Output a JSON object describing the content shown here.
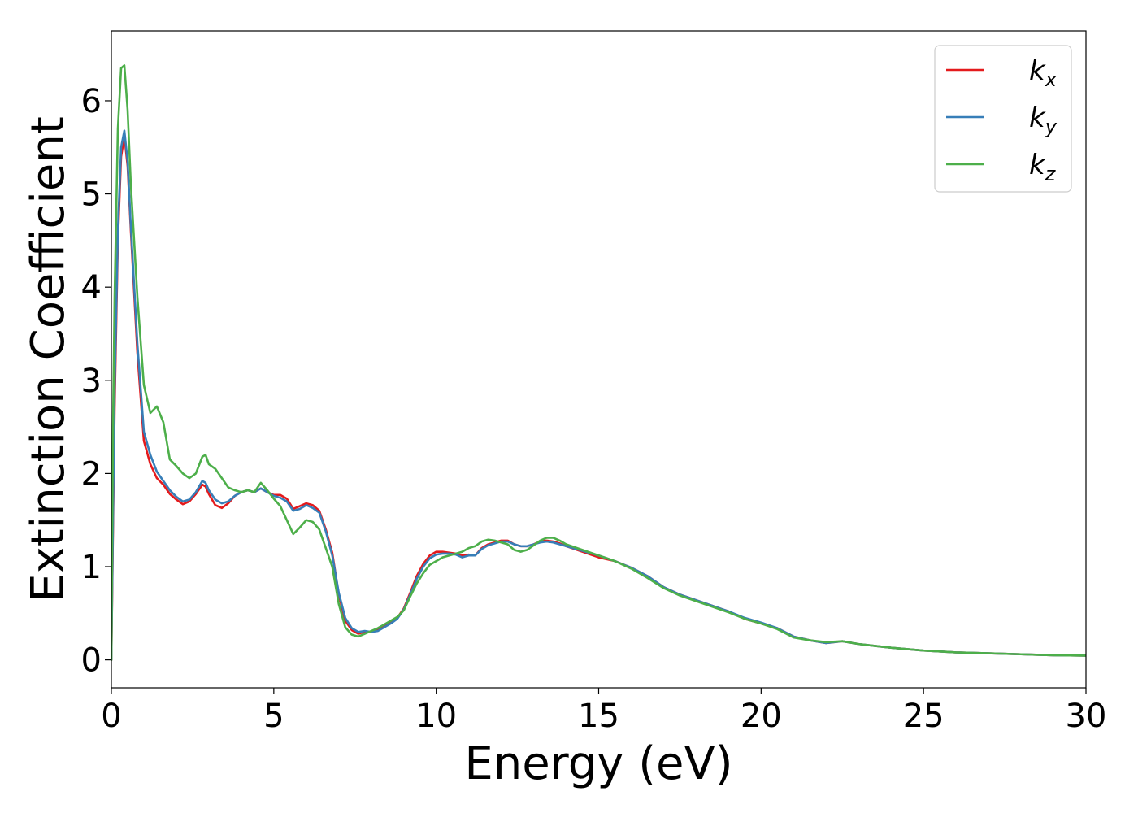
{
  "chart_data": {
    "type": "line",
    "title": "",
    "xlabel": "Energy (eV)",
    "ylabel": "Extinction Coefficient",
    "xlim": [
      0,
      30
    ],
    "ylim": [
      -0.3,
      6.75
    ],
    "xticks": [
      0,
      5,
      10,
      15,
      20,
      25,
      30
    ],
    "yticks": [
      0,
      1,
      2,
      3,
      4,
      5,
      6
    ],
    "grid": false,
    "legend_position": "top-right",
    "series": [
      {
        "name": "k_x",
        "label_base": "k",
        "label_sub": "x",
        "color": "#e41a1c",
        "x": [
          0,
          0.05,
          0.1,
          0.2,
          0.3,
          0.4,
          0.5,
          0.6,
          0.8,
          1.0,
          1.2,
          1.4,
          1.6,
          1.8,
          2.0,
          2.2,
          2.4,
          2.6,
          2.8,
          2.9,
          3.0,
          3.2,
          3.4,
          3.6,
          3.8,
          4.0,
          4.2,
          4.4,
          4.6,
          4.8,
          5.0,
          5.2,
          5.4,
          5.6,
          5.8,
          6.0,
          6.2,
          6.4,
          6.6,
          6.8,
          7.0,
          7.2,
          7.4,
          7.6,
          7.8,
          8.0,
          8.2,
          8.4,
          8.6,
          8.8,
          9.0,
          9.2,
          9.4,
          9.6,
          9.8,
          10.0,
          10.2,
          10.4,
          10.6,
          10.8,
          11.0,
          11.2,
          11.4,
          11.6,
          11.8,
          12.0,
          12.2,
          12.4,
          12.6,
          12.8,
          13.0,
          13.2,
          13.4,
          13.6,
          13.8,
          14.0,
          14.5,
          15.0,
          15.5,
          16.0,
          16.5,
          17.0,
          17.5,
          18.0,
          18.5,
          19.0,
          19.5,
          20.0,
          20.5,
          21.0,
          21.5,
          22.0,
          22.5,
          23.0,
          23.5,
          24.0,
          25.0,
          26.0,
          27.0,
          28.0,
          29.0,
          30.0
        ],
        "y": [
          0,
          1.4,
          2.7,
          4.5,
          5.4,
          5.62,
          5.3,
          4.6,
          3.3,
          2.35,
          2.1,
          1.95,
          1.88,
          1.78,
          1.72,
          1.67,
          1.7,
          1.78,
          1.88,
          1.86,
          1.78,
          1.66,
          1.63,
          1.68,
          1.76,
          1.8,
          1.82,
          1.8,
          1.84,
          1.8,
          1.77,
          1.77,
          1.73,
          1.62,
          1.65,
          1.68,
          1.66,
          1.6,
          1.4,
          1.15,
          0.7,
          0.42,
          0.32,
          0.28,
          0.3,
          0.3,
          0.32,
          0.36,
          0.4,
          0.45,
          0.55,
          0.72,
          0.9,
          1.03,
          1.12,
          1.16,
          1.16,
          1.15,
          1.14,
          1.12,
          1.13,
          1.12,
          1.2,
          1.24,
          1.26,
          1.28,
          1.28,
          1.24,
          1.22,
          1.22,
          1.24,
          1.27,
          1.28,
          1.27,
          1.25,
          1.22,
          1.16,
          1.1,
          1.06,
          0.99,
          0.9,
          0.78,
          0.7,
          0.64,
          0.58,
          0.52,
          0.44,
          0.39,
          0.34,
          0.25,
          0.21,
          0.18,
          0.2,
          0.17,
          0.15,
          0.13,
          0.1,
          0.08,
          0.07,
          0.06,
          0.05,
          0.045
        ]
      },
      {
        "name": "k_y",
        "label_base": "k",
        "label_sub": "y",
        "color": "#377eb8",
        "x": [
          0,
          0.05,
          0.1,
          0.2,
          0.3,
          0.4,
          0.5,
          0.6,
          0.8,
          1.0,
          1.2,
          1.4,
          1.6,
          1.8,
          2.0,
          2.2,
          2.4,
          2.6,
          2.8,
          2.9,
          3.0,
          3.2,
          3.4,
          3.6,
          3.8,
          4.0,
          4.2,
          4.4,
          4.6,
          4.8,
          5.0,
          5.2,
          5.4,
          5.6,
          5.8,
          6.0,
          6.2,
          6.4,
          6.6,
          6.8,
          7.0,
          7.2,
          7.4,
          7.6,
          7.8,
          8.0,
          8.2,
          8.4,
          8.6,
          8.8,
          9.0,
          9.2,
          9.4,
          9.6,
          9.8,
          10.0,
          10.2,
          10.4,
          10.6,
          10.8,
          11.0,
          11.2,
          11.4,
          11.6,
          11.8,
          12.0,
          12.2,
          12.4,
          12.6,
          12.8,
          13.0,
          13.2,
          13.4,
          13.6,
          13.8,
          14.0,
          14.5,
          15.0,
          15.5,
          16.0,
          16.5,
          17.0,
          17.5,
          18.0,
          18.5,
          19.0,
          19.5,
          20.0,
          20.5,
          21.0,
          21.5,
          22.0,
          22.5,
          23.0,
          23.5,
          24.0,
          25.0,
          26.0,
          27.0,
          28.0,
          29.0,
          30.0
        ],
        "y": [
          0,
          1.5,
          2.9,
          4.6,
          5.5,
          5.68,
          5.35,
          4.65,
          3.4,
          2.45,
          2.2,
          2.02,
          1.92,
          1.82,
          1.75,
          1.7,
          1.72,
          1.8,
          1.92,
          1.9,
          1.82,
          1.72,
          1.68,
          1.7,
          1.76,
          1.8,
          1.82,
          1.8,
          1.84,
          1.8,
          1.76,
          1.74,
          1.7,
          1.6,
          1.62,
          1.66,
          1.63,
          1.58,
          1.38,
          1.12,
          0.72,
          0.45,
          0.34,
          0.3,
          0.31,
          0.3,
          0.31,
          0.35,
          0.39,
          0.44,
          0.54,
          0.7,
          0.87,
          1.0,
          1.09,
          1.13,
          1.14,
          1.14,
          1.13,
          1.1,
          1.12,
          1.12,
          1.19,
          1.23,
          1.25,
          1.27,
          1.27,
          1.24,
          1.22,
          1.22,
          1.24,
          1.26,
          1.27,
          1.26,
          1.24,
          1.22,
          1.17,
          1.12,
          1.06,
          0.99,
          0.9,
          0.78,
          0.7,
          0.64,
          0.58,
          0.52,
          0.45,
          0.4,
          0.34,
          0.25,
          0.21,
          0.18,
          0.2,
          0.17,
          0.15,
          0.13,
          0.1,
          0.08,
          0.07,
          0.06,
          0.05,
          0.045
        ]
      },
      {
        "name": "k_z",
        "label_base": "k",
        "label_sub": "z",
        "color": "#4daf4a",
        "x": [
          0,
          0.05,
          0.1,
          0.2,
          0.3,
          0.4,
          0.5,
          0.6,
          0.8,
          1.0,
          1.2,
          1.4,
          1.6,
          1.8,
          2.0,
          2.2,
          2.4,
          2.6,
          2.8,
          2.9,
          3.0,
          3.2,
          3.4,
          3.6,
          3.8,
          4.0,
          4.2,
          4.4,
          4.6,
          4.8,
          5.0,
          5.2,
          5.4,
          5.6,
          5.8,
          6.0,
          6.2,
          6.4,
          6.6,
          6.8,
          7.0,
          7.2,
          7.4,
          7.6,
          7.8,
          8.0,
          8.2,
          8.4,
          8.6,
          8.8,
          9.0,
          9.2,
          9.4,
          9.6,
          9.8,
          10.0,
          10.2,
          10.4,
          10.6,
          10.8,
          11.0,
          11.2,
          11.4,
          11.6,
          11.8,
          12.0,
          12.2,
          12.4,
          12.6,
          12.8,
          13.0,
          13.2,
          13.4,
          13.6,
          13.8,
          14.0,
          14.5,
          15.0,
          15.5,
          16.0,
          16.5,
          17.0,
          17.5,
          18.0,
          18.5,
          19.0,
          19.5,
          20.0,
          20.5,
          21.0,
          21.5,
          22.0,
          22.5,
          23.0,
          23.5,
          24.0,
          25.0,
          26.0,
          27.0,
          28.0,
          29.0,
          30.0
        ],
        "y": [
          0,
          2.5,
          3.9,
          5.7,
          6.35,
          6.38,
          5.9,
          5.1,
          3.9,
          2.95,
          2.65,
          2.72,
          2.55,
          2.15,
          2.08,
          2.0,
          1.95,
          2.0,
          2.18,
          2.2,
          2.1,
          2.05,
          1.95,
          1.85,
          1.82,
          1.8,
          1.82,
          1.8,
          1.9,
          1.82,
          1.73,
          1.65,
          1.5,
          1.35,
          1.42,
          1.5,
          1.48,
          1.4,
          1.2,
          1.0,
          0.6,
          0.35,
          0.27,
          0.25,
          0.28,
          0.31,
          0.34,
          0.38,
          0.42,
          0.46,
          0.53,
          0.68,
          0.82,
          0.93,
          1.02,
          1.06,
          1.1,
          1.12,
          1.14,
          1.16,
          1.2,
          1.22,
          1.27,
          1.29,
          1.28,
          1.26,
          1.24,
          1.18,
          1.16,
          1.18,
          1.23,
          1.28,
          1.31,
          1.31,
          1.28,
          1.24,
          1.18,
          1.12,
          1.06,
          0.98,
          0.88,
          0.77,
          0.69,
          0.63,
          0.57,
          0.51,
          0.44,
          0.39,
          0.33,
          0.24,
          0.21,
          0.19,
          0.2,
          0.17,
          0.15,
          0.13,
          0.1,
          0.08,
          0.07,
          0.06,
          0.05,
          0.045
        ]
      }
    ]
  }
}
